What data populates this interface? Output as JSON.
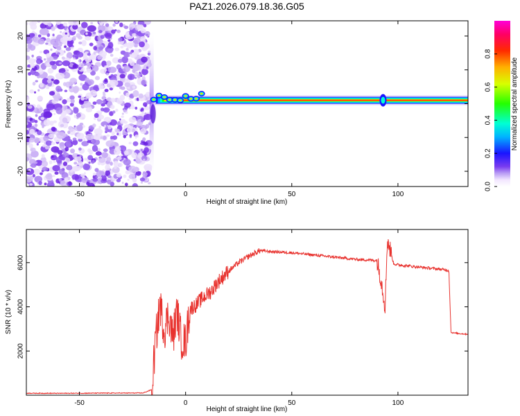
{
  "title": "PAZ1.2026.079.18.36.G05",
  "colorbar": {
    "label": "Normalized spectral amplitude",
    "ticks": [
      "0.0",
      "0.2",
      "0.4",
      "0.6",
      "0.8"
    ],
    "tick_values": [
      0.0,
      0.2,
      0.4,
      0.6,
      0.8
    ]
  },
  "chart_data": [
    {
      "type": "heatmap",
      "xlabel": "Height of straight line (km)",
      "ylabel": "Frequency (Hz)",
      "xlim": [
        -75,
        133
      ],
      "ylim": [
        -24.5,
        24.5
      ],
      "x_ticks": [
        -50,
        0,
        50,
        100
      ],
      "x_tick_labels": [
        "-50",
        "0",
        "50",
        "100"
      ],
      "y_ticks": [
        -20,
        -10,
        0,
        10,
        20
      ],
      "y_tick_labels": [
        "-20",
        "-10",
        "0",
        "10",
        "20"
      ],
      "regions": [
        {
          "name": "noise",
          "x_range": [
            -75,
            -17
          ],
          "freq_range": [
            -24.5,
            24.5
          ],
          "amplitude_range": [
            0.0,
            0.25
          ]
        },
        {
          "name": "signal-onset",
          "x_range": [
            -17,
            10
          ],
          "freq_center": 1.5,
          "amplitude": 0.5
        },
        {
          "name": "carrier",
          "x_range": [
            10,
            133
          ],
          "freq_center": 1.0,
          "amplitude_peak": 1.0
        }
      ]
    },
    {
      "type": "line",
      "xlabel": "Height of straight line (km)",
      "ylabel": "SNR (10 * v/v)",
      "xlim": [
        -75,
        133
      ],
      "ylim": [
        0,
        7500
      ],
      "x_ticks": [
        -50,
        0,
        50,
        100
      ],
      "x_tick_labels": [
        "-50",
        "0",
        "50",
        "100"
      ],
      "y_ticks": [
        2000,
        4000,
        6000
      ],
      "y_tick_labels": [
        "2000",
        "4000",
        "6000"
      ],
      "series": [
        {
          "name": "SNR",
          "color": "#e8322e",
          "x": [
            -75,
            -60,
            -40,
            -20,
            -16,
            -14,
            -12,
            -10,
            -8,
            -6,
            -4,
            -2,
            0,
            2,
            5,
            8,
            12,
            15,
            20,
            25,
            30,
            35,
            40,
            50,
            60,
            70,
            80,
            90,
            92,
            94,
            95,
            96,
            98,
            100,
            105,
            110,
            115,
            120,
            124,
            125,
            126,
            128,
            130,
            133
          ],
          "y": [
            90,
            85,
            95,
            100,
            250,
            2600,
            4100,
            2900,
            3700,
            2600,
            3800,
            2500,
            2400,
            3900,
            4100,
            4400,
            4700,
            5100,
            5600,
            6000,
            6300,
            6550,
            6500,
            6450,
            6350,
            6250,
            6150,
            6100,
            5300,
            4000,
            7100,
            6700,
            5950,
            5900,
            5850,
            5800,
            5750,
            5700,
            5650,
            2850,
            2820,
            2800,
            2780,
            2760
          ]
        }
      ]
    }
  ]
}
